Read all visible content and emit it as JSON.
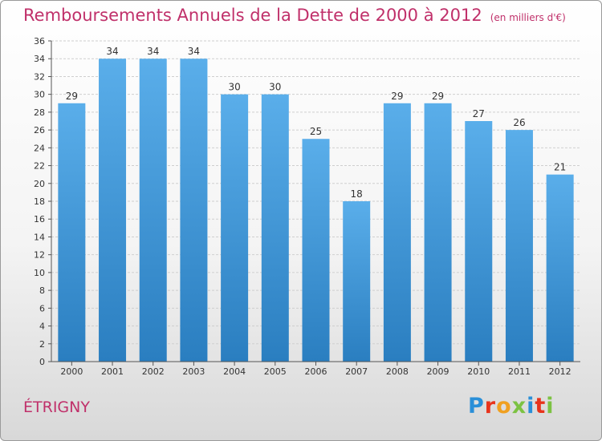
{
  "header": {
    "title": "Remboursements Annuels de la Dette de 2000 à 2012",
    "subtitle": "(en milliers d'€)"
  },
  "footer": {
    "city": "ÉTRIGNY",
    "logo_text": "Proxiti",
    "logo_colors": [
      "#2a8fd8",
      "#e8341c",
      "#f0a020",
      "#7cc242",
      "#2a8fd8",
      "#e8341c",
      "#7cc242"
    ]
  },
  "chart_data": {
    "type": "bar",
    "categories": [
      "2000",
      "2001",
      "2002",
      "2003",
      "2004",
      "2005",
      "2006",
      "2007",
      "2008",
      "2009",
      "2010",
      "2011",
      "2012"
    ],
    "values": [
      29,
      34,
      34,
      34,
      30,
      30,
      25,
      18,
      29,
      29,
      27,
      26,
      21
    ],
    "ylim": [
      0,
      36
    ],
    "y_ticks": [
      0,
      2,
      4,
      6,
      8,
      10,
      12,
      14,
      16,
      18,
      20,
      22,
      24,
      26,
      28,
      30,
      32,
      34,
      36
    ],
    "grid": true,
    "bar_color_top": "#5aaeea",
    "bar_color_bottom": "#2a7ec0",
    "title_color": "#c0306a"
  }
}
